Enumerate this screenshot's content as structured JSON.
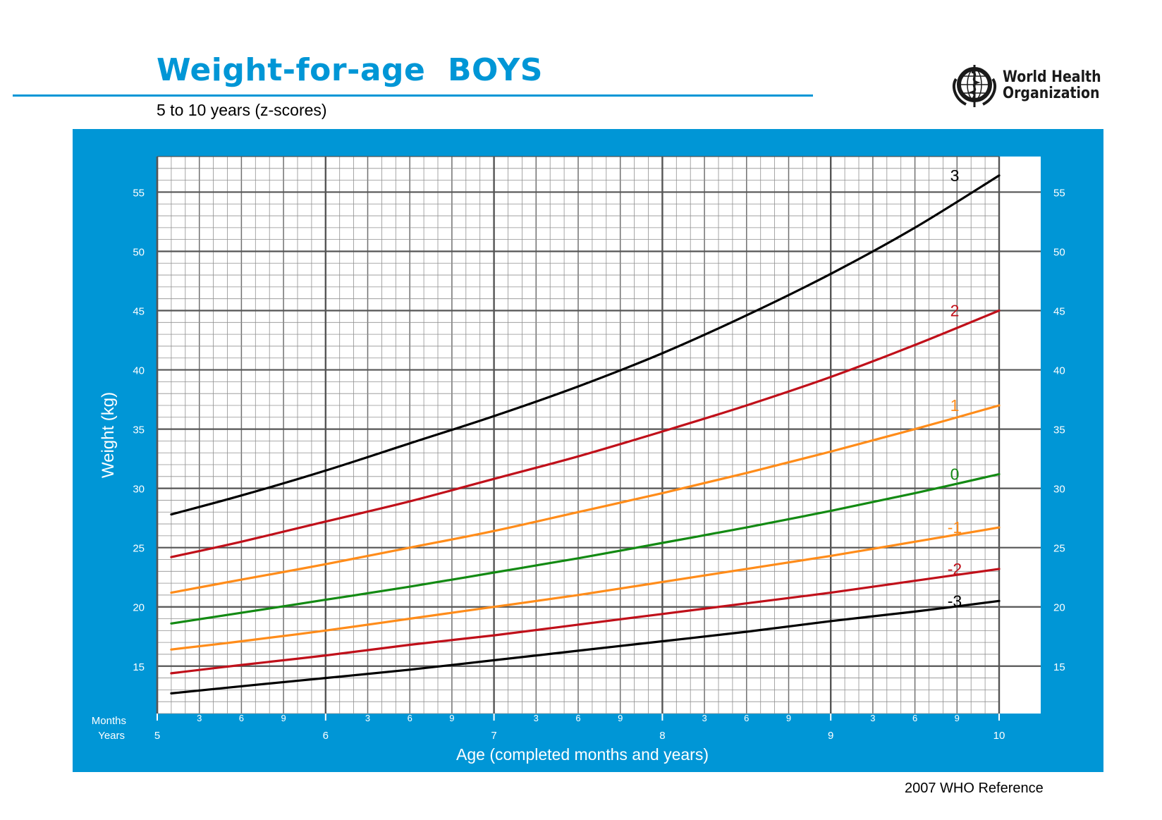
{
  "header": {
    "title": "Weight-for-age  BOYS",
    "subtitle": "5 to 10 years (z-scores)"
  },
  "logo": {
    "name_line1": "World Health",
    "name_line2": "Organization",
    "icon": "who-emblem-icon"
  },
  "footer": {
    "text": "2007 WHO Reference"
  },
  "colors": {
    "brand_blue": "#0096d6",
    "grid_minor": "#909090",
    "grid_major": "#555555",
    "sd3": "#000000",
    "sd2": "#c0101a",
    "sd1": "#ff8c1a",
    "sd0": "#138a13"
  },
  "chart_data": {
    "type": "line",
    "title": "Weight-for-age  BOYS",
    "subtitle": "5 to 10 years (z-scores)",
    "xlabel": "Age (completed months and years)",
    "ylabel": "Weight (kg)",
    "x_unit": "months",
    "xlim": [
      60,
      120
    ],
    "ylim": [
      11,
      58
    ],
    "y_ticks": [
      15,
      20,
      25,
      30,
      35,
      40,
      45,
      50,
      55
    ],
    "x_ticks": [
      {
        "x": 60,
        "year": "5"
      },
      {
        "x": 63,
        "month": "3"
      },
      {
        "x": 66,
        "month": "6"
      },
      {
        "x": 69,
        "month": "9"
      },
      {
        "x": 72,
        "year": "6"
      },
      {
        "x": 75,
        "month": "3"
      },
      {
        "x": 78,
        "month": "6"
      },
      {
        "x": 81,
        "month": "9"
      },
      {
        "x": 84,
        "year": "7"
      },
      {
        "x": 87,
        "month": "3"
      },
      {
        "x": 90,
        "month": "6"
      },
      {
        "x": 93,
        "month": "9"
      },
      {
        "x": 96,
        "year": "8"
      },
      {
        "x": 99,
        "month": "3"
      },
      {
        "x": 102,
        "month": "6"
      },
      {
        "x": 105,
        "month": "9"
      },
      {
        "x": 108,
        "year": "9"
      },
      {
        "x": 111,
        "month": "3"
      },
      {
        "x": 114,
        "month": "6"
      },
      {
        "x": 117,
        "month": "9"
      },
      {
        "x": 120,
        "year": "10"
      }
    ],
    "axis_row_labels": {
      "months": "Months",
      "years": "Years"
    },
    "grid": true,
    "x": [
      61,
      66,
      72,
      78,
      84,
      90,
      96,
      102,
      108,
      114,
      120
    ],
    "series": [
      {
        "name": "3",
        "color": "#000000",
        "values": [
          27.8,
          29.4,
          31.5,
          33.8,
          36.1,
          38.6,
          41.4,
          44.6,
          48.1,
          52.0,
          56.4
        ]
      },
      {
        "name": "2",
        "color": "#c0101a",
        "values": [
          24.2,
          25.5,
          27.2,
          28.9,
          30.8,
          32.7,
          34.8,
          37.0,
          39.4,
          42.1,
          45.0
        ]
      },
      {
        "name": "1",
        "color": "#ff8c1a",
        "values": [
          21.2,
          22.3,
          23.6,
          25.0,
          26.4,
          28.0,
          29.6,
          31.3,
          33.1,
          35.0,
          37.0
        ]
      },
      {
        "name": "0",
        "color": "#138a13",
        "values": [
          18.6,
          19.5,
          20.6,
          21.7,
          22.9,
          24.1,
          25.4,
          26.7,
          28.1,
          29.6,
          31.2
        ]
      },
      {
        "name": "-1",
        "color": "#ff8c1a",
        "values": [
          16.4,
          17.1,
          18.0,
          19.0,
          20.0,
          21.0,
          22.1,
          23.2,
          24.3,
          25.5,
          26.7
        ]
      },
      {
        "name": "-2",
        "color": "#c0101a",
        "values": [
          14.4,
          15.1,
          15.9,
          16.8,
          17.6,
          18.5,
          19.4,
          20.3,
          21.2,
          22.2,
          23.2
        ]
      },
      {
        "name": "-3",
        "color": "#000000",
        "values": [
          12.7,
          13.3,
          14.0,
          14.7,
          15.5,
          16.3,
          17.1,
          17.9,
          18.8,
          19.6,
          20.5
        ]
      }
    ],
    "line_end_labels": [
      "3",
      "2",
      "1",
      "0",
      "-1",
      "-2",
      "-3"
    ]
  }
}
